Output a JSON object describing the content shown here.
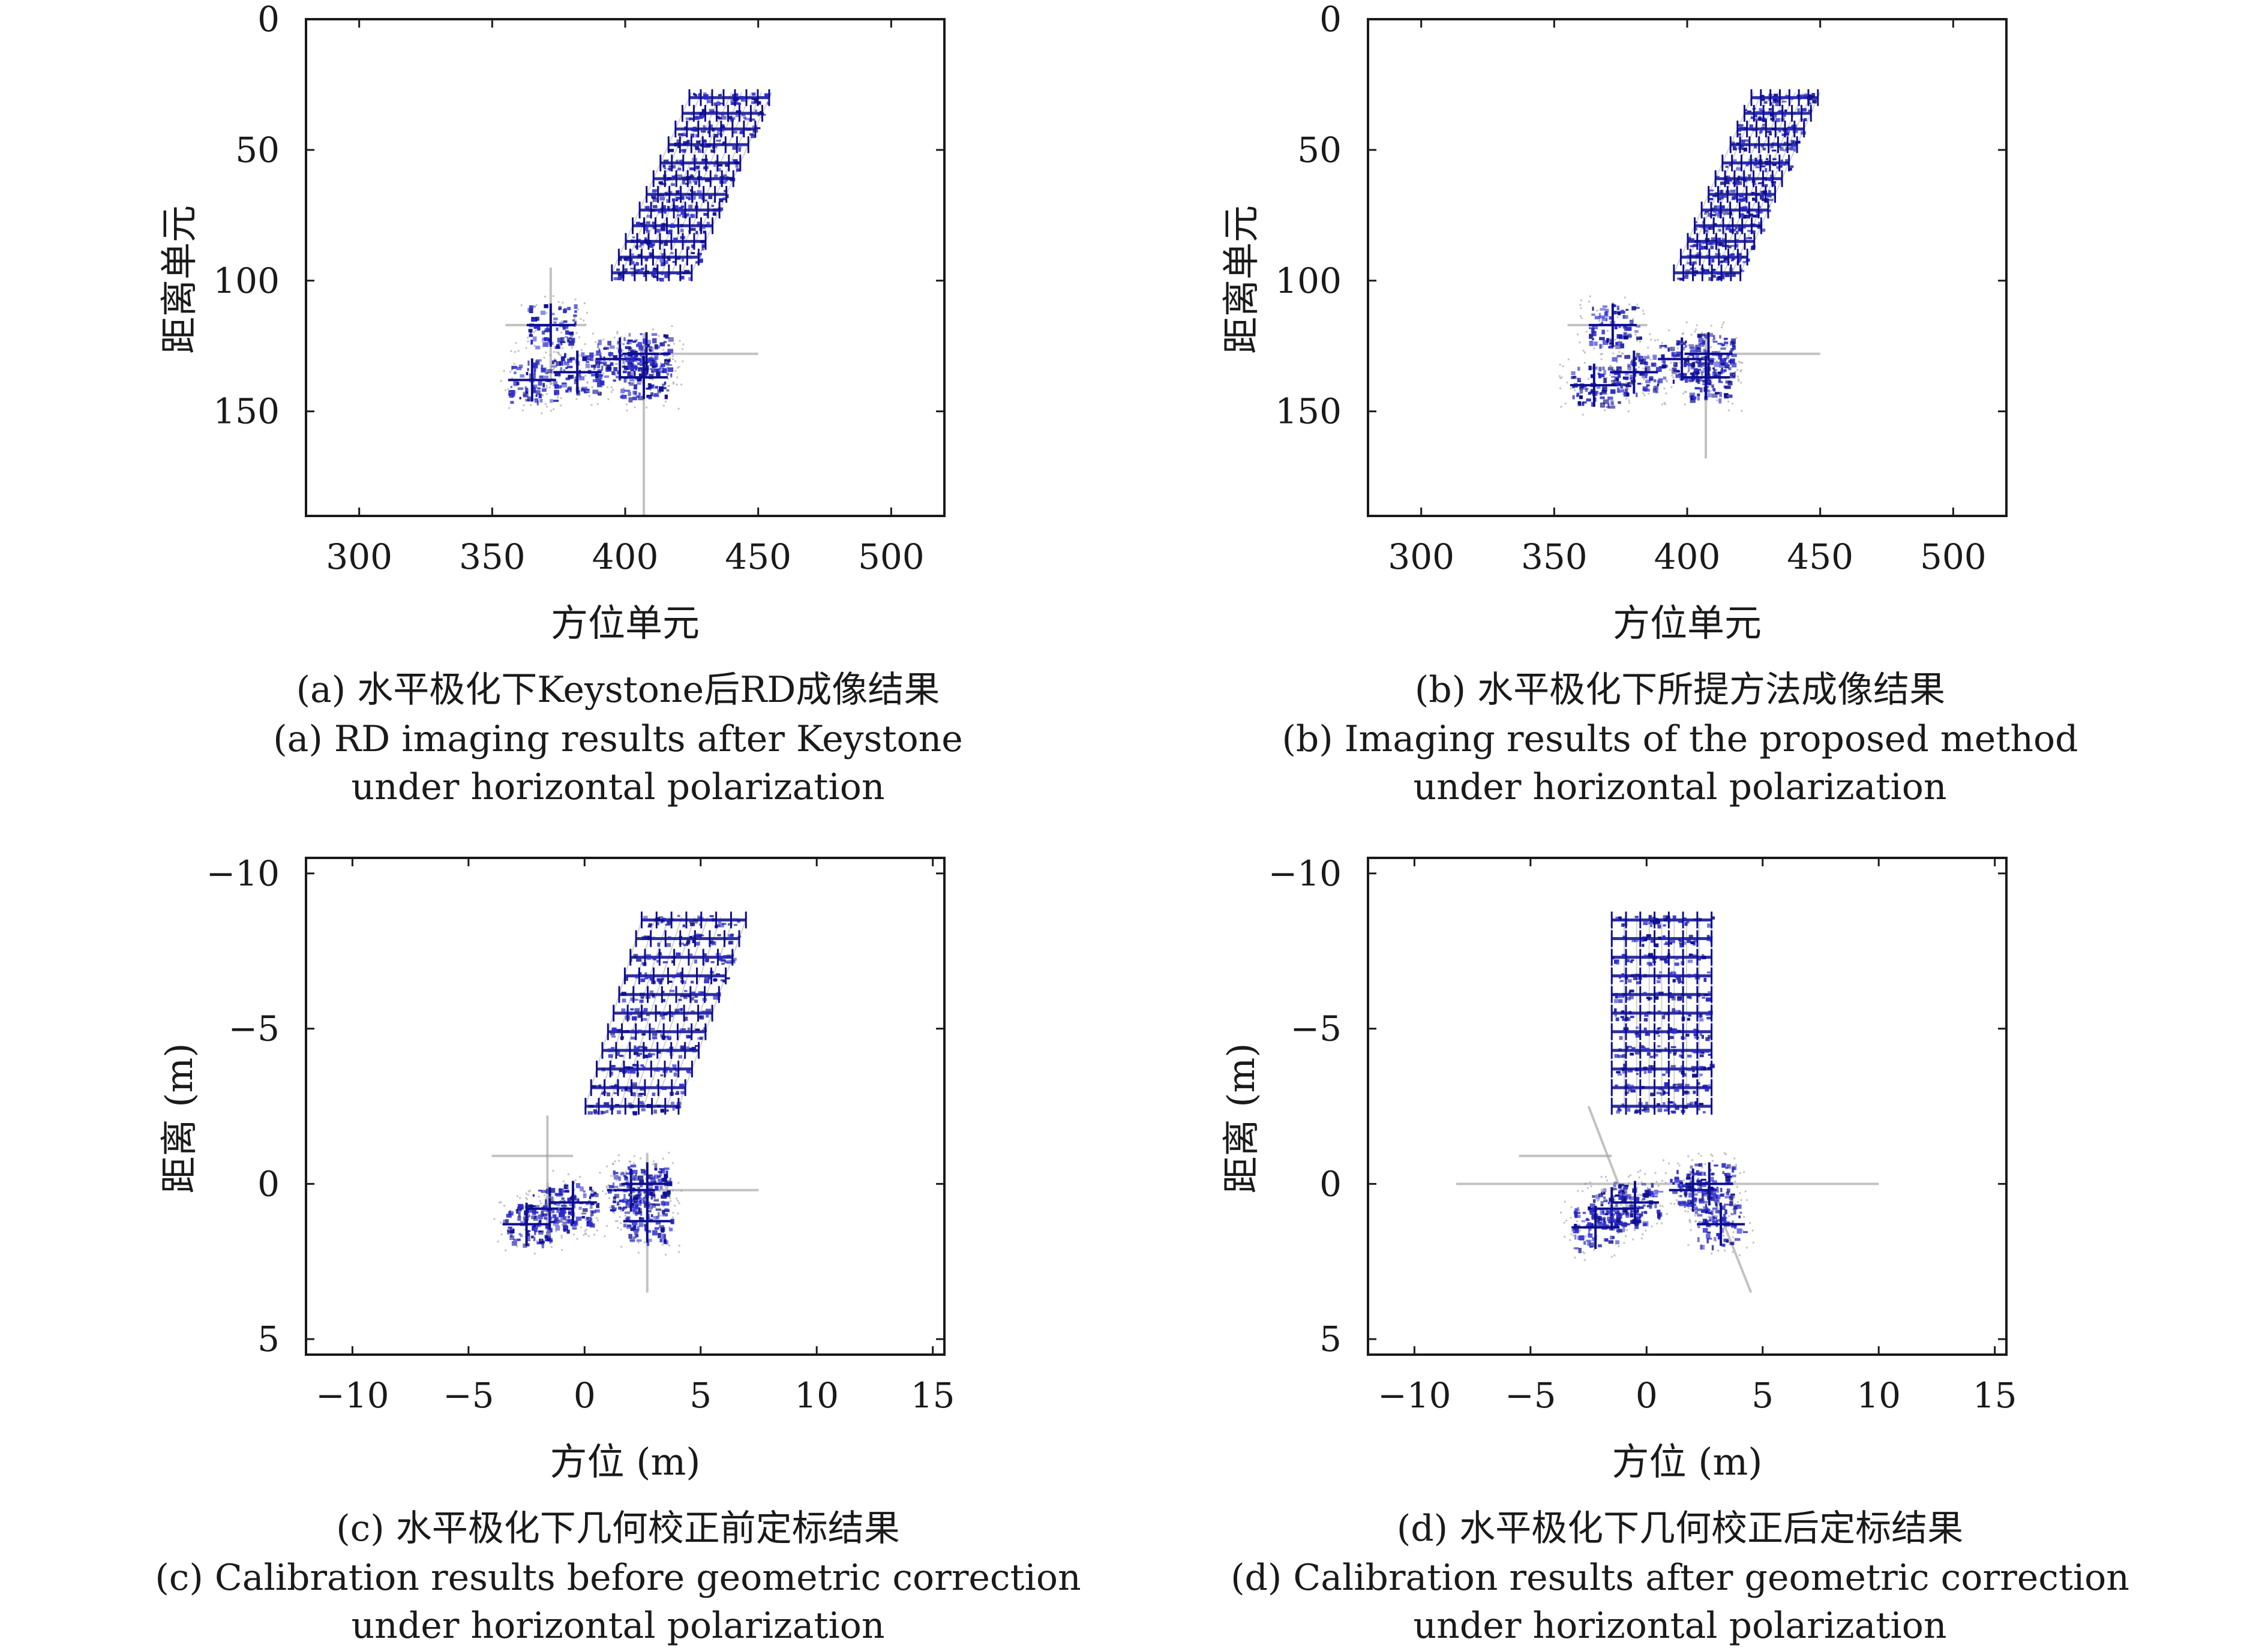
{
  "colors": {
    "frame": "#1a1a1a",
    "scatter": "#2a2acc",
    "scatter_dense": "#0d0d8f",
    "streak": "#9a9a9a"
  },
  "panels": [
    {
      "caption_cn": "(a) 水平极化下Keystone后RD成像结果",
      "caption_en": [
        "(a) RD imaging results after Keystone",
        "under horizontal polarization"
      ]
    },
    {
      "caption_cn": "(b) 水平极化下所提方法成像结果",
      "caption_en": [
        "(b) Imaging results of the proposed method",
        "under horizontal polarization"
      ]
    },
    {
      "caption_cn": "(c) 水平极化下几何校正前定标结果",
      "caption_en": [
        "(c) Calibration results before geometric correction",
        "under horizontal polarization"
      ]
    },
    {
      "caption_cn": "(d) 水平极化下几何校正后定标结果",
      "caption_en": [
        "(d) Calibration results after geometric correction",
        "under horizontal polarization"
      ]
    }
  ],
  "chart_data": [
    {
      "type": "scatter",
      "title": "",
      "xlabel": "方位单元",
      "ylabel": "距离单元",
      "xlim": [
        280,
        520
      ],
      "ylim": [
        0,
        190
      ],
      "y_inverted": true,
      "xticks": [
        300,
        350,
        400,
        450,
        500
      ],
      "yticks": [
        0,
        50,
        100,
        150
      ],
      "xtick_labels": [
        "300",
        "350",
        "400",
        "450",
        "500"
      ],
      "ytick_labels": [
        "0",
        "50",
        "100",
        "150"
      ],
      "grid": false,
      "regions": [
        {
          "name": "upper-array",
          "rows_y": [
            30,
            36,
            42,
            48,
            55,
            61,
            67,
            73,
            79,
            85,
            91,
            97
          ],
          "top": [
            [
              425,
              28
            ],
            [
              455,
              28
            ]
          ],
          "bottom": [
            [
              395,
              97
            ],
            [
              425,
              97
            ]
          ],
          "shear": true
        },
        {
          "name": "lower-cluster",
          "centers": [
            [
              372,
              117
            ],
            [
              365,
              138
            ],
            [
              382,
              135
            ],
            [
              398,
              130
            ],
            [
              408,
              128
            ],
            [
              407,
              137
            ]
          ]
        }
      ],
      "streaks": [
        {
          "from": [
            355,
            117
          ],
          "to": [
            385,
            117
          ]
        },
        {
          "from": [
            400,
            128
          ],
          "to": [
            450,
            128
          ]
        },
        {
          "from": [
            407,
            120
          ],
          "to": [
            407,
            190
          ]
        },
        {
          "from": [
            372,
            95
          ],
          "to": [
            372,
            140
          ]
        }
      ]
    },
    {
      "type": "scatter",
      "title": "",
      "xlabel": "方位单元",
      "ylabel": "距离单元",
      "xlim": [
        280,
        520
      ],
      "ylim": [
        0,
        190
      ],
      "y_inverted": true,
      "xticks": [
        300,
        350,
        400,
        450,
        500
      ],
      "yticks": [
        0,
        50,
        100,
        150
      ],
      "xtick_labels": [
        "300",
        "350",
        "400",
        "450",
        "500"
      ],
      "ytick_labels": [
        "0",
        "50",
        "100",
        "150"
      ],
      "grid": false,
      "regions": [
        {
          "name": "upper-array",
          "rows_y": [
            30,
            36,
            42,
            48,
            55,
            61,
            67,
            73,
            79,
            85,
            91,
            97
          ],
          "top": [
            [
              425,
              28
            ],
            [
              450,
              28
            ]
          ],
          "bottom": [
            [
              395,
              97
            ],
            [
              420,
              97
            ]
          ],
          "shear": true
        },
        {
          "name": "lower-cluster",
          "centers": [
            [
              372,
              117
            ],
            [
              365,
              140
            ],
            [
              380,
              135
            ],
            [
              398,
              130
            ],
            [
              408,
              128
            ],
            [
              407,
              137
            ]
          ]
        }
      ],
      "streaks": [
        {
          "from": [
            355,
            117
          ],
          "to": [
            385,
            117
          ]
        },
        {
          "from": [
            405,
            128
          ],
          "to": [
            450,
            128
          ]
        },
        {
          "from": [
            407,
            120
          ],
          "to": [
            407,
            168
          ]
        }
      ]
    },
    {
      "type": "scatter",
      "title": "",
      "xlabel": "方位 (m)",
      "ylabel": "距离 (m)",
      "xlim": [
        -12,
        15.5
      ],
      "ylim": [
        -10.5,
        5.5
      ],
      "y_inverted": true,
      "xticks": [
        -10,
        -5,
        0,
        5,
        10,
        15
      ],
      "yticks": [
        -10,
        -5,
        0,
        5
      ],
      "xtick_labels": [
        "−10",
        "−5",
        "0",
        "5",
        "10",
        "15"
      ],
      "ytick_labels": [
        "−10",
        "−5",
        "0",
        "5"
      ],
      "grid": false,
      "regions": [
        {
          "name": "upper-array",
          "rows_y": [
            -8.5,
            -7.9,
            -7.3,
            -6.7,
            -6.1,
            -5.5,
            -4.9,
            -4.3,
            -3.7,
            -3.1,
            -2.5
          ],
          "top": [
            [
              2.5,
              -8.6
            ],
            [
              7,
              -8.6
            ]
          ],
          "bottom": [
            [
              0,
              -2.4
            ],
            [
              4,
              -2.4
            ]
          ],
          "shear": true
        },
        {
          "name": "lower-cluster",
          "centers": [
            [
              -1.5,
              0.8
            ],
            [
              -2.5,
              1.3
            ],
            [
              -0.5,
              0.6
            ],
            [
              2,
              0.2
            ],
            [
              2.7,
              0
            ],
            [
              2.7,
              1.2
            ]
          ]
        }
      ],
      "streaks": [
        {
          "from": [
            -4,
            -0.9
          ],
          "to": [
            -0.5,
            -0.9
          ]
        },
        {
          "from": [
            2,
            0.2
          ],
          "to": [
            7.5,
            0.2
          ]
        },
        {
          "from": [
            2.7,
            -1
          ],
          "to": [
            2.7,
            3.5
          ]
        },
        {
          "from": [
            -1.6,
            -2.2
          ],
          "to": [
            -1.6,
            1.5
          ]
        }
      ]
    },
    {
      "type": "scatter",
      "title": "",
      "xlabel": "方位 (m)",
      "ylabel": "距离 (m)",
      "xlim": [
        -12,
        15.5
      ],
      "ylim": [
        -10.5,
        5.5
      ],
      "y_inverted": true,
      "xticks": [
        -10,
        -5,
        0,
        5,
        10,
        15
      ],
      "yticks": [
        -10,
        -5,
        0,
        5
      ],
      "xtick_labels": [
        "−10",
        "−5",
        "0",
        "5",
        "10",
        "15"
      ],
      "ytick_labels": [
        "−10",
        "−5",
        "0",
        "5"
      ],
      "grid": false,
      "regions": [
        {
          "name": "upper-array",
          "rows_y": [
            -8.5,
            -7.9,
            -7.3,
            -6.7,
            -6.1,
            -5.5,
            -4.9,
            -4.3,
            -3.7,
            -3.1,
            -2.5
          ],
          "top": [
            [
              -1.5,
              -8.6
            ],
            [
              2.8,
              -8.6
            ]
          ],
          "bottom": [
            [
              -1.5,
              -2.4
            ],
            [
              2.8,
              -2.4
            ]
          ],
          "shear": false
        },
        {
          "name": "lower-cluster",
          "centers": [
            [
              -1.5,
              0.8
            ],
            [
              -2.2,
              1.4
            ],
            [
              -0.5,
              0.6
            ],
            [
              2,
              0.2
            ],
            [
              2.7,
              0
            ],
            [
              3.2,
              1.3
            ]
          ]
        }
      ],
      "streaks": [
        {
          "from": [
            -8.2,
            0
          ],
          "to": [
            10,
            0
          ]
        },
        {
          "from": [
            -5.5,
            -0.9
          ],
          "to": [
            -1.5,
            -0.9
          ]
        },
        {
          "from": [
            -2.5,
            -2.5
          ],
          "to": [
            -0.8,
            0.8
          ]
        },
        {
          "from": [
            2.8,
            0.3
          ],
          "to": [
            4.5,
            3.5
          ]
        }
      ]
    }
  ]
}
